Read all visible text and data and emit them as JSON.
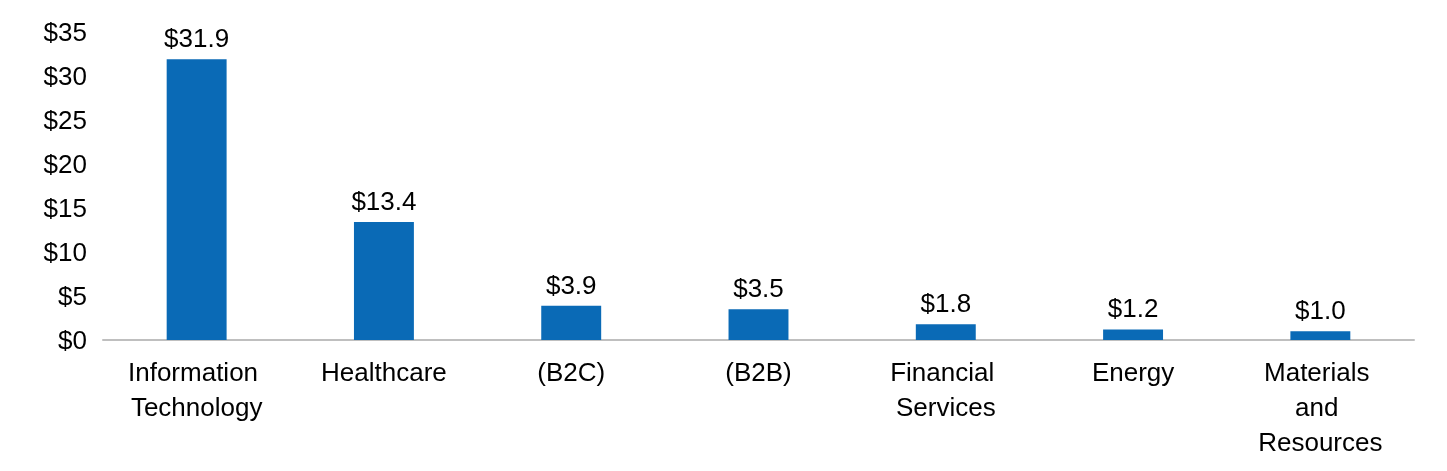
{
  "chart_data": {
    "type": "bar",
    "categories": [
      "Information Technology",
      "Healthcare",
      "(B2C)",
      "(B2B)",
      "Financial Services",
      "Energy",
      "Materials and Resources"
    ],
    "values": [
      31.9,
      13.4,
      3.9,
      3.5,
      1.8,
      1.2,
      1.0
    ],
    "value_labels": [
      "$31.9",
      "$13.4",
      "$3.9",
      "$3.5",
      "$1.8",
      "$1.2",
      "$1.0"
    ],
    "color": "#0a6ab6",
    "ylim": [
      0,
      35
    ],
    "yticks": [
      {
        "value": 0,
        "label": "$0"
      },
      {
        "value": 5,
        "label": "$5"
      },
      {
        "value": 10,
        "label": "$10"
      },
      {
        "value": 15,
        "label": "$15"
      },
      {
        "value": 20,
        "label": "$20"
      },
      {
        "value": 25,
        "label": "$25"
      },
      {
        "value": 30,
        "label": "$30"
      },
      {
        "value": 35,
        "label": "$35"
      }
    ],
    "grid": false
  }
}
